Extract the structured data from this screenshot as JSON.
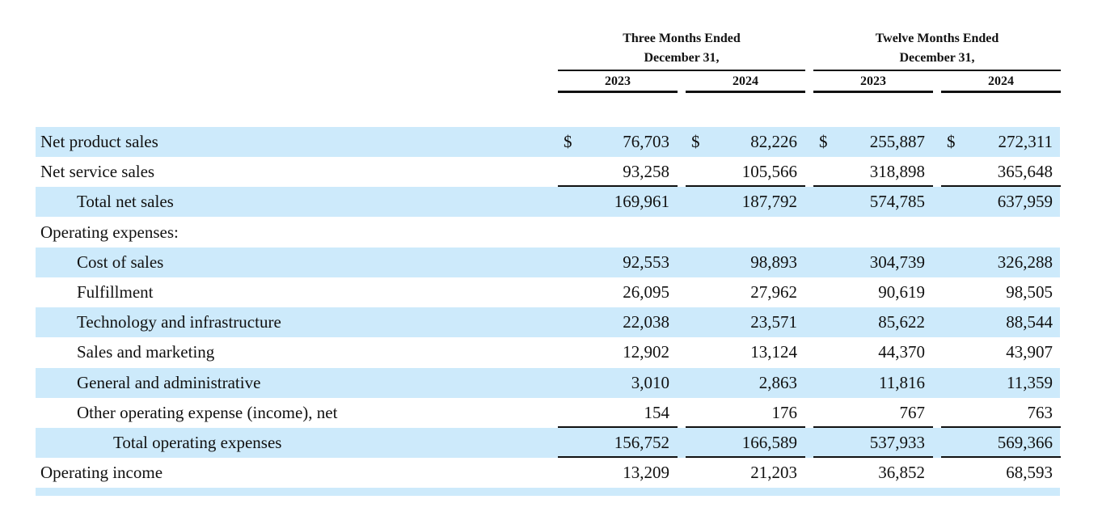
{
  "header": {
    "groups": [
      {
        "title": "Three Months Ended",
        "subtitle": "December 31,"
      },
      {
        "title": "Twelve Months Ended",
        "subtitle": "December 31,"
      }
    ],
    "years": [
      "2023",
      "2024",
      "2023",
      "2024"
    ]
  },
  "table": {
    "rows": [
      {
        "label": "Net product sales",
        "currency": [
          "$",
          "$",
          "$",
          "$"
        ],
        "values": [
          "76,703",
          "82,226",
          "255,887",
          "272,311"
        ]
      },
      {
        "label": "Net service sales",
        "values": [
          "93,258",
          "105,566",
          "318,898",
          "365,648"
        ]
      },
      {
        "label": "Total net sales",
        "values": [
          "169,961",
          "187,792",
          "574,785",
          "637,959"
        ]
      },
      {
        "label": "Operating expenses:"
      },
      {
        "label": "Cost of sales",
        "values": [
          "92,553",
          "98,893",
          "304,739",
          "326,288"
        ]
      },
      {
        "label": "Fulfillment",
        "values": [
          "26,095",
          "27,962",
          "90,619",
          "98,505"
        ]
      },
      {
        "label": "Technology and infrastructure",
        "values": [
          "22,038",
          "23,571",
          "85,622",
          "88,544"
        ]
      },
      {
        "label": "Sales and marketing",
        "values": [
          "12,902",
          "13,124",
          "44,370",
          "43,907"
        ]
      },
      {
        "label": "General and administrative",
        "values": [
          "3,010",
          "2,863",
          "11,816",
          "11,359"
        ]
      },
      {
        "label": "Other operating expense (income), net",
        "values": [
          "154",
          "176",
          "767",
          "763"
        ]
      },
      {
        "label": "Total operating expenses",
        "values": [
          "156,752",
          "166,589",
          "537,933",
          "569,366"
        ]
      },
      {
        "label": "Operating income",
        "values": [
          "13,209",
          "21,203",
          "36,852",
          "68,593"
        ]
      }
    ]
  }
}
